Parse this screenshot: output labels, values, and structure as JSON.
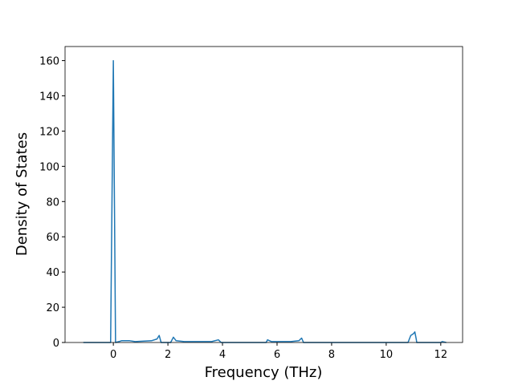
{
  "chart_data": {
    "type": "line",
    "x_label": "Frequency (THz)",
    "y_label": "Density of States",
    "x": [
      -1.1,
      -0.1,
      0,
      0.08,
      0.2,
      0.3,
      0.6,
      0.8,
      1.4,
      1.6,
      1.68,
      1.75,
      2.1,
      2.2,
      2.3,
      2.6,
      3.6,
      3.85,
      3.95,
      5.6,
      5.65,
      5.8,
      6.5,
      6.8,
      6.9,
      6.97,
      10.8,
      10.9,
      11.0,
      11.05,
      11.1,
      11.12,
      12.0,
      12.05,
      12.2
    ],
    "series": [
      {
        "color": "#1f77b4",
        "values": [
          0,
          0,
          160,
          0,
          0.5,
          1,
          1,
          0.5,
          1,
          2,
          4,
          0,
          0,
          3,
          1,
          0.5,
          0.5,
          1.5,
          0,
          0,
          1.5,
          0.5,
          0.5,
          1,
          2.5,
          0,
          0,
          4,
          5,
          6,
          2,
          0,
          0,
          0.5,
          0
        ]
      }
    ],
    "xlim": [
      -1.77,
      12.8
    ],
    "ylim": [
      0,
      168
    ],
    "xticks": [
      0,
      2,
      4,
      6,
      8,
      10,
      12
    ],
    "yticks": [
      0,
      20,
      40,
      60,
      80,
      100,
      120,
      140,
      160
    ]
  }
}
